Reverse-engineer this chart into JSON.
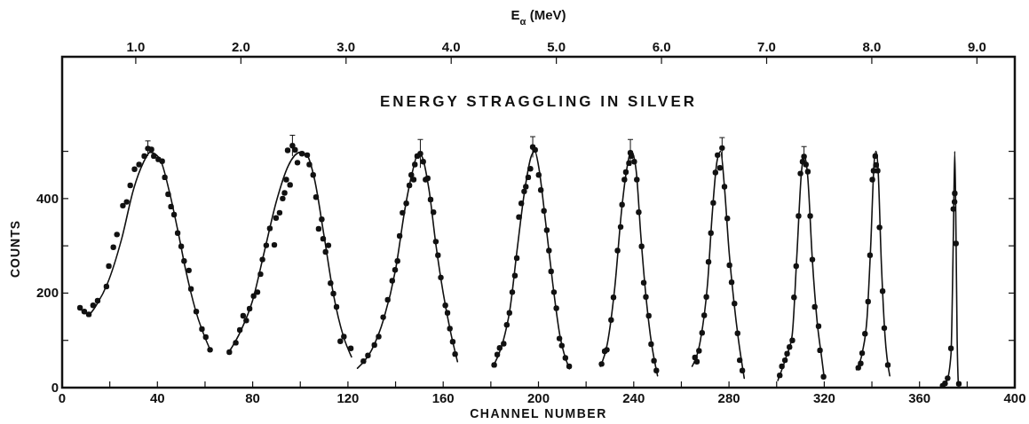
{
  "chart_data": {
    "type": "scatter",
    "title": "ENERGY STRAGGLING IN SILVER",
    "xlabel": "CHANNEL NUMBER",
    "ylabel": "COUNTS",
    "x2label": "E$_{α}$ (MeV)",
    "xlim": [
      0,
      400
    ],
    "xticks": [
      0,
      {
        "value": 20,
        "label": null
      },
      40,
      {
        "value": 60,
        "label": null
      },
      80,
      {
        "value": 100,
        "label": null
      },
      120,
      {
        "value": 140,
        "label": null
      },
      160,
      {
        "value": 180,
        "label": null
      },
      200,
      {
        "value": 220,
        "label": null
      },
      240,
      {
        "value": 260,
        "label": null
      },
      280,
      {
        "value": 300,
        "label": null
      },
      320,
      {
        "value": 340,
        "label": null
      },
      360,
      {
        "value": 380,
        "label": null
      },
      400
    ],
    "ylim": [
      0,
      700
    ],
    "yticks": [
      0,
      {
        "value": 100,
        "label": null
      },
      200,
      {
        "value": 300,
        "label": null
      },
      400,
      {
        "value": 500,
        "label": null
      }
    ],
    "x2lim": [
      0.3,
      9.36
    ],
    "x2ticks": [
      {
        "value": 1,
        "label": "1.0"
      },
      {
        "value": 2,
        "label": "2.0"
      },
      {
        "value": 3,
        "label": "3.0"
      },
      {
        "value": 4,
        "label": "4.0"
      },
      {
        "value": 5,
        "label": "5.0"
      },
      {
        "value": 6,
        "label": "6.0"
      },
      {
        "value": 7,
        "label": "7.0"
      },
      {
        "value": 8,
        "label": "8.0"
      },
      {
        "value": 9,
        "label": "9.0"
      }
    ],
    "line_style": "solid",
    "series": [
      {
        "type": "scatter",
        "color": "#111111",
        "x": [
          36.0,
          7.5,
          9.3,
          11.2,
          13.0,
          14.9,
          18.6,
          19.6,
          21.5,
          23.0,
          25.5,
          27.1,
          28.6,
          30.4,
          32.3,
          34.5,
          37.5,
          38.5,
          40.4,
          42.0,
          43.1,
          44.5,
          45.7,
          47.0,
          48.5,
          50.0,
          51.2,
          53.2,
          54.1,
          56.3,
          58.7,
          60.3,
          62.1
        ],
        "values": [
          506,
          169,
          161,
          155,
          174,
          184,
          214,
          257,
          297,
          324,
          385,
          393,
          428,
          462,
          472,
          490,
          504,
          490,
          483,
          479,
          445,
          409,
          383,
          366,
          327,
          299,
          268,
          248,
          209,
          161,
          124,
          107,
          80
        ],
        "errors": [
          16,
          null,
          null,
          null,
          null,
          null,
          null,
          null,
          null,
          null,
          null,
          null,
          null,
          null,
          null,
          null,
          null,
          null,
          null,
          null,
          null,
          null,
          null,
          null,
          null,
          null,
          null,
          null,
          null,
          null,
          null,
          null,
          null
        ]
      },
      {
        "type": "scatter",
        "color": "#111111",
        "x": [
          96.7,
          70.2,
          72.9,
          74.6,
          76.0,
          77.3,
          78.7,
          80.4,
          82.0,
          83.3,
          84.1,
          85.7,
          87.2,
          89.1,
          89.8,
          91.3,
          92.6,
          93.4,
          94.1,
          95.7,
          94.7,
          97.8,
          98.8,
          100.7,
          102.9,
          103.8,
          105.4,
          106.6,
          107.7,
          109.0,
          109.6,
          110.6,
          111.8,
          112.7,
          113.9,
          115.2,
          116.8,
          118.3,
          121.2
        ],
        "values": [
          512,
          75,
          95,
          122,
          152,
          142,
          167,
          194,
          202,
          240,
          271,
          301,
          337,
          302,
          359,
          370,
          400,
          412,
          440,
          429,
          502,
          503,
          476,
          495,
          492,
          472,
          450,
          403,
          336,
          356,
          315,
          287,
          301,
          221,
          199,
          171,
          98,
          108,
          83
        ],
        "errors": [
          22,
          null,
          null,
          null,
          null,
          null,
          null,
          null,
          null,
          null,
          null,
          null,
          null,
          null,
          null,
          null,
          null,
          null,
          null,
          null,
          null,
          null,
          null,
          null,
          null,
          null,
          null,
          null,
          null,
          null,
          null,
          null,
          null,
          null,
          null,
          null,
          null,
          null,
          null
        ]
      },
      {
        "type": "scatter",
        "color": "#111111",
        "x": [
          150.4,
          126.5,
          128.4,
          131.1,
          132.9,
          134.8,
          136.7,
          138.6,
          139.8,
          140.8,
          141.7,
          142.9,
          144.5,
          145.8,
          146.6,
          147.6,
          148.1,
          149.1,
          151.6,
          152.6,
          153.5,
          154.7,
          155.9,
          156.9,
          157.8,
          159.0,
          160.9,
          161.8,
          162.8,
          164.0,
          165.0
        ],
        "values": [
          495,
          56,
          68,
          90,
          108,
          149,
          186,
          226,
          249,
          268,
          321,
          370,
          390,
          428,
          450,
          440,
          472,
          490,
          478,
          440,
          443,
          398,
          371,
          309,
          280,
          233,
          174,
          158,
          125,
          97,
          71
        ],
        "errors": [
          30,
          null,
          null,
          null,
          null,
          null,
          null,
          null,
          null,
          null,
          null,
          null,
          null,
          null,
          null,
          null,
          null,
          null,
          null,
          null,
          null,
          null,
          null,
          null,
          null,
          null,
          null,
          null,
          null,
          null,
          null
        ]
      },
      {
        "type": "scatter",
        "color": "#111111",
        "x": [
          197.6,
          181.4,
          182.7,
          183.7,
          185.4,
          186.7,
          187.8,
          189.0,
          190.1,
          190.9,
          191.8,
          192.8,
          194.0,
          194.7,
          195.7,
          196.6,
          198.6,
          200.1,
          201.0,
          202.3,
          203.5,
          204.4,
          205.3,
          206.5,
          207.5,
          208.8,
          209.8,
          211.3,
          212.9
        ],
        "values": [
          509,
          48,
          70,
          84,
          93,
          133,
          158,
          202,
          237,
          274,
          361,
          390,
          415,
          425,
          445,
          463,
          503,
          450,
          418,
          374,
          333,
          290,
          246,
          202,
          168,
          104,
          89,
          63,
          45
        ],
        "errors": [
          22,
          null,
          null,
          null,
          null,
          null,
          null,
          null,
          null,
          null,
          null,
          null,
          null,
          null,
          null,
          null,
          null,
          null,
          null,
          null,
          null,
          null,
          null,
          null,
          null,
          null,
          null,
          null,
          null
        ]
      },
      {
        "type": "scatter",
        "color": "#111111",
        "x": [
          238.6,
          226.5,
          227.8,
          228.7,
          230.5,
          231.5,
          233.2,
          234.5,
          235.1,
          236.1,
          236.7,
          238.0,
          239.0,
          240.2,
          241.3,
          242.1,
          243.3,
          244.2,
          245.1,
          246.3,
          247.3,
          248.5,
          249.5
        ],
        "values": [
          497,
          50,
          77,
          80,
          143,
          191,
          290,
          340,
          387,
          440,
          456,
          475,
          490,
          478,
          440,
          371,
          299,
          222,
          192,
          152,
          92,
          57,
          36
        ],
        "errors": [
          28,
          null,
          null,
          null,
          null,
          null,
          null,
          null,
          null,
          null,
          null,
          null,
          null,
          null,
          null,
          null,
          null,
          null,
          null,
          null,
          null,
          null,
          null
        ]
      },
      {
        "type": "scatter",
        "color": "#111111",
        "x": [
          277.1,
          265.7,
          266.5,
          267.4,
          268.7,
          269.6,
          270.5,
          271.4,
          272.4,
          273.4,
          274.3,
          275.2,
          276.2,
          278.1,
          279.3,
          280.2,
          281.1,
          282.3,
          283.6,
          284.5,
          285.6
        ],
        "values": [
          507,
          64,
          55,
          78,
          116,
          153,
          192,
          266,
          327,
          391,
          455,
          492,
          465,
          425,
          358,
          259,
          223,
          178,
          115,
          58,
          36
        ],
        "errors": [
          22,
          null,
          null,
          null,
          null,
          null,
          null,
          null,
          null,
          null,
          null,
          null,
          null,
          null,
          null,
          null,
          null,
          null,
          null,
          null,
          null
        ]
      },
      {
        "type": "scatter",
        "color": "#111111",
        "x": [
          311.5,
          301.3,
          302.2,
          303.5,
          304.4,
          305.4,
          306.6,
          307.3,
          308.2,
          309.2,
          310.0,
          310.9,
          312.3,
          313.1,
          314.1,
          315.0,
          316.0,
          317.6,
          318.2,
          319.7
        ],
        "values": [
          489,
          26,
          45,
          58,
          72,
          86,
          100,
          191,
          257,
          363,
          453,
          478,
          472,
          457,
          363,
          271,
          171,
          130,
          79,
          23
        ],
        "errors": [
          21,
          null,
          null,
          null,
          null,
          null,
          null,
          null,
          null,
          null,
          null,
          null,
          null,
          null,
          null,
          null,
          null,
          null,
          null,
          null
        ]
      },
      {
        "type": "scatter",
        "color": "#111111",
        "x": [
          334.3,
          335.3,
          335.9,
          337.1,
          338.4,
          339.2,
          340.2,
          340.7,
          341.4,
          341.8,
          342.4,
          343.2,
          344.5,
          345.2,
          346.7
        ],
        "values": [
          42,
          51,
          73,
          114,
          182,
          280,
          440,
          459,
          490,
          471,
          459,
          339,
          204,
          126,
          48
        ]
      },
      {
        "type": "scatter",
        "color": "#111111",
        "x": [
          369.7,
          370.7,
          371.8,
          373.2,
          374.2,
          374.7,
          374.8,
          375.3,
          376.5
        ],
        "values": [
          4,
          9,
          20,
          83,
          378,
          393,
          411,
          305,
          8
        ]
      },
      {
        "type": "line",
        "color": "#111111",
        "x": [
          7.5,
          11,
          15,
          19,
          25,
          30,
          34,
          37,
          41,
          45,
          48.5,
          52,
          56,
          62.4
        ],
        "values": [
          167,
          155,
          180,
          220,
          315,
          420,
          475,
          498,
          484,
          415,
          334,
          246,
          164,
          77
        ]
      },
      {
        "type": "line",
        "color": "#111111",
        "x": [
          70,
          75,
          80,
          85,
          90,
          95,
          100,
          103,
          106,
          110,
          114,
          118,
          121.5
        ],
        "values": [
          75,
          120,
          185,
          290,
          395,
          470,
          498,
          490,
          440,
          320,
          195,
          110,
          65
        ]
      },
      {
        "type": "line",
        "color": "#111111",
        "x": [
          124,
          130,
          135,
          140,
          144,
          147,
          149.5,
          151,
          154,
          157,
          160,
          163,
          166
        ],
        "values": [
          41,
          80,
          145,
          250,
          380,
          455,
          495,
          490,
          420,
          300,
          200,
          120,
          55
        ]
      },
      {
        "type": "line",
        "color": "#111111",
        "x": [
          181,
          185,
          188,
          191,
          194,
          197,
          198.5,
          200,
          203,
          206,
          209,
          213
        ],
        "values": [
          45,
          95,
          165,
          290,
          410,
          490,
          500,
          470,
          350,
          220,
          110,
          40
        ]
      },
      {
        "type": "line",
        "color": "#111111",
        "x": [
          226,
          229,
          232,
          235,
          237,
          239,
          241,
          243,
          245,
          247,
          250
        ],
        "values": [
          45,
          95,
          210,
          380,
          460,
          500,
          460,
          320,
          200,
          110,
          25
        ]
      },
      {
        "type": "line",
        "color": "#111111",
        "x": [
          264.5,
          268,
          271,
          273,
          275,
          276.5,
          278,
          280,
          282,
          284,
          286.4
        ],
        "values": [
          45,
          100,
          220,
          370,
          480,
          500,
          430,
          290,
          185,
          100,
          20
        ]
      },
      {
        "type": "line",
        "color": "#111111",
        "x": [
          300.5,
          304,
          306.5,
          308.5,
          310.5,
          311.7,
          313,
          315,
          317,
          319,
          320
        ],
        "values": [
          15,
          65,
          110,
          280,
          460,
          490,
          450,
          270,
          140,
          60,
          20
        ]
      },
      {
        "type": "line",
        "color": "#111111",
        "x": [
          333.5,
          336,
          338,
          339.5,
          341,
          341.7,
          342.5,
          344,
          345.5,
          347.5
        ],
        "values": [
          38,
          75,
          150,
          300,
          480,
          500,
          470,
          260,
          110,
          25
        ]
      },
      {
        "type": "line",
        "color": "#111111",
        "x": [
          368.5,
          371.5,
          373.2,
          374.2,
          374.8,
          375.3,
          375.8,
          376.3
        ],
        "values": [
          0,
          15,
          70,
          320,
          500,
          330,
          100,
          5
        ]
      }
    ]
  }
}
